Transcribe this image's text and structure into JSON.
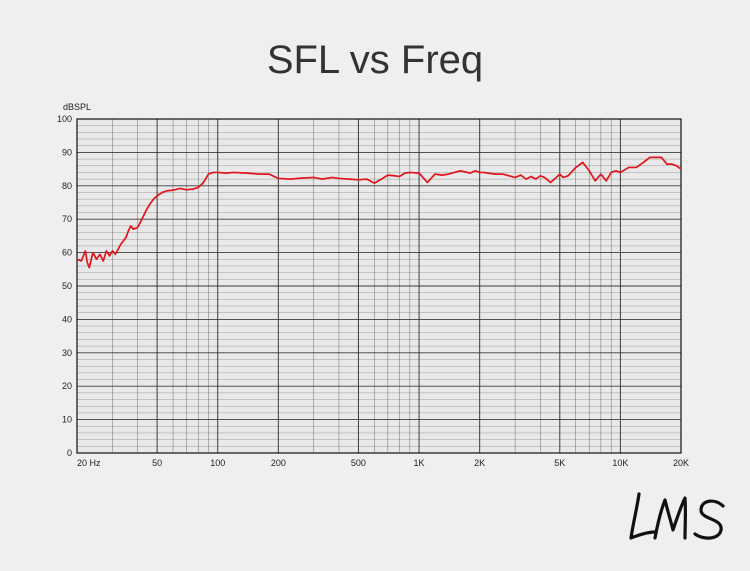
{
  "colors": {
    "background": "#efefef",
    "plot_bg": "#e9e9e9",
    "grid": "#333333",
    "line": "#e3141b"
  },
  "logo": {
    "text": "LMS",
    "icon": "lms-signature-logo"
  },
  "chart_data": {
    "type": "line",
    "title": "SFL vs Freq",
    "xlabel": "",
    "ylabel": "dBSPL",
    "x_scale": "log",
    "xlim": [
      20,
      20000
    ],
    "ylim": [
      0,
      100
    ],
    "grid": true,
    "x_tick_values": [
      20,
      50,
      100,
      200,
      500,
      1000,
      2000,
      5000,
      10000,
      20000
    ],
    "x_tick_labels": [
      "20 Hz",
      "50",
      "100",
      "200",
      "500",
      "1K",
      "2K",
      "5K",
      "10K",
      "20K"
    ],
    "y_ticks": [
      0,
      10,
      20,
      30,
      40,
      50,
      60,
      70,
      80,
      90,
      100
    ],
    "series": [
      {
        "color": "#e3141b",
        "x": [
          20,
          21,
          22,
          22.5,
          23,
          24,
          25,
          26,
          27,
          28,
          29,
          30,
          31,
          32,
          33,
          35,
          36,
          37,
          38,
          40,
          42,
          44,
          46,
          48,
          50,
          53,
          56,
          60,
          65,
          70,
          75,
          80,
          85,
          90,
          95,
          100,
          110,
          120,
          140,
          160,
          180,
          200,
          230,
          260,
          300,
          330,
          370,
          400,
          450,
          500,
          550,
          600,
          650,
          700,
          750,
          800,
          850,
          900,
          1000,
          1100,
          1200,
          1300,
          1400,
          1600,
          1800,
          1900,
          2000,
          2100,
          2200,
          2400,
          2600,
          2800,
          3000,
          3200,
          3400,
          3600,
          3800,
          4000,
          4200,
          4500,
          4800,
          5000,
          5200,
          5500,
          6000,
          6500,
          7000,
          7500,
          8000,
          8500,
          9000,
          9500,
          10000,
          11000,
          12000,
          13000,
          14000,
          15000,
          16000,
          17000,
          18000,
          19000,
          20000
        ],
        "y": [
          58,
          57.5,
          60.5,
          57,
          55.5,
          60,
          58,
          59.5,
          57.5,
          60.5,
          59,
          60.5,
          59.5,
          61,
          62.5,
          64.5,
          66.5,
          68,
          67,
          67.5,
          70,
          72.5,
          74.5,
          76,
          77,
          78,
          78.5,
          78.7,
          79.2,
          78.8,
          79,
          79.5,
          81,
          83.5,
          84,
          84,
          83.8,
          84,
          83.8,
          83.5,
          83.5,
          82.2,
          82,
          82.3,
          82.5,
          82,
          82.5,
          82.2,
          82,
          81.8,
          82,
          80.8,
          82,
          83.2,
          83,
          82.8,
          83.8,
          84,
          83.8,
          81,
          83.5,
          83.2,
          83.5,
          84.5,
          83.8,
          84.5,
          84,
          84,
          83.8,
          83.5,
          83.5,
          83,
          82.5,
          83.2,
          82,
          82.8,
          82,
          83,
          82.5,
          81,
          82.5,
          83.5,
          82.5,
          83,
          85.5,
          87,
          84.5,
          81.5,
          83.5,
          81.5,
          84,
          84.5,
          84,
          85.5,
          85.5,
          87,
          88.5,
          88.5,
          88.5,
          86.5,
          86.5,
          86,
          85
        ]
      }
    ]
  }
}
